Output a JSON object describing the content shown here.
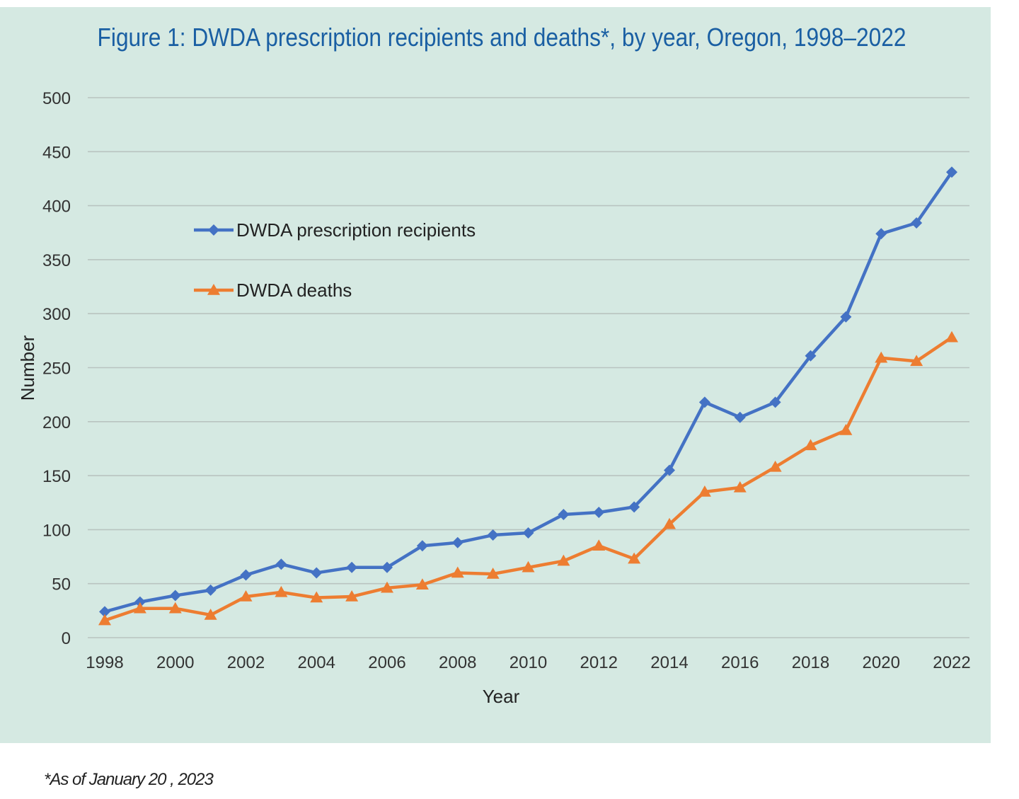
{
  "chart_data": {
    "type": "line",
    "title": "Figure 1: DWDA prescription recipients and deaths*, by year, Oregon, 1998–2022",
    "xlabel": "Year",
    "ylabel": "Number",
    "ylim": [
      0,
      500
    ],
    "yticks": [
      "0",
      "50",
      "100",
      "150",
      "200",
      "250",
      "300",
      "350",
      "400",
      "450",
      "500"
    ],
    "xticks": [
      "1998",
      "2000",
      "2002",
      "2004",
      "2006",
      "2008",
      "2010",
      "2012",
      "2014",
      "2016",
      "2018",
      "2020",
      "2022"
    ],
    "x": [
      1998,
      1999,
      2000,
      2001,
      2002,
      2003,
      2004,
      2005,
      2006,
      2007,
      2008,
      2009,
      2010,
      2011,
      2012,
      2013,
      2014,
      2015,
      2016,
      2017,
      2018,
      2019,
      2020,
      2021,
      2022
    ],
    "grid": true,
    "legend_position": "upper-left",
    "series": [
      {
        "name": "DWDA prescription recipients",
        "color": "#4472c4",
        "marker": "diamond",
        "values": [
          24,
          33,
          39,
          44,
          58,
          68,
          60,
          65,
          65,
          85,
          88,
          95,
          97,
          114,
          116,
          121,
          155,
          218,
          204,
          218,
          261,
          297,
          374,
          384,
          431
        ]
      },
      {
        "name": "DWDA deaths",
        "color": "#ed7d31",
        "marker": "triangle",
        "values": [
          16,
          27,
          27,
          21,
          38,
          42,
          37,
          38,
          46,
          49,
          60,
          59,
          65,
          71,
          85,
          73,
          105,
          135,
          139,
          158,
          178,
          192,
          259,
          256,
          278
        ]
      }
    ]
  },
  "footnote": "*As of January 20 , 2023"
}
